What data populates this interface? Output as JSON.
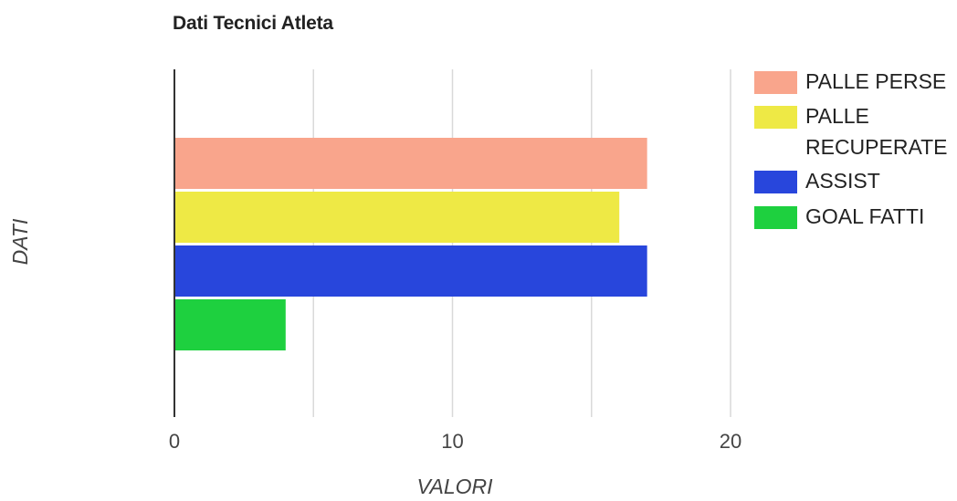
{
  "chart_data": {
    "type": "bar",
    "orientation": "horizontal",
    "title": "Dati Tecnici Atleta",
    "xlabel": "VALORI",
    "ylabel": "DATI",
    "xlim": [
      0,
      20
    ],
    "x_ticks": [
      "0",
      "10",
      "20"
    ],
    "grid": true,
    "legend_position": "right",
    "series": [
      {
        "name": "PALLE PERSE",
        "values": [
          17
        ],
        "color": "#f9a58c"
      },
      {
        "name": "PALLE RECUPERATE",
        "values": [
          16
        ],
        "color": "#eee945"
      },
      {
        "name": "ASSIST",
        "values": [
          17
        ],
        "color": "#2846dc"
      },
      {
        "name": "GOAL FATTI",
        "values": [
          4
        ],
        "color": "#1ed03f"
      }
    ]
  }
}
